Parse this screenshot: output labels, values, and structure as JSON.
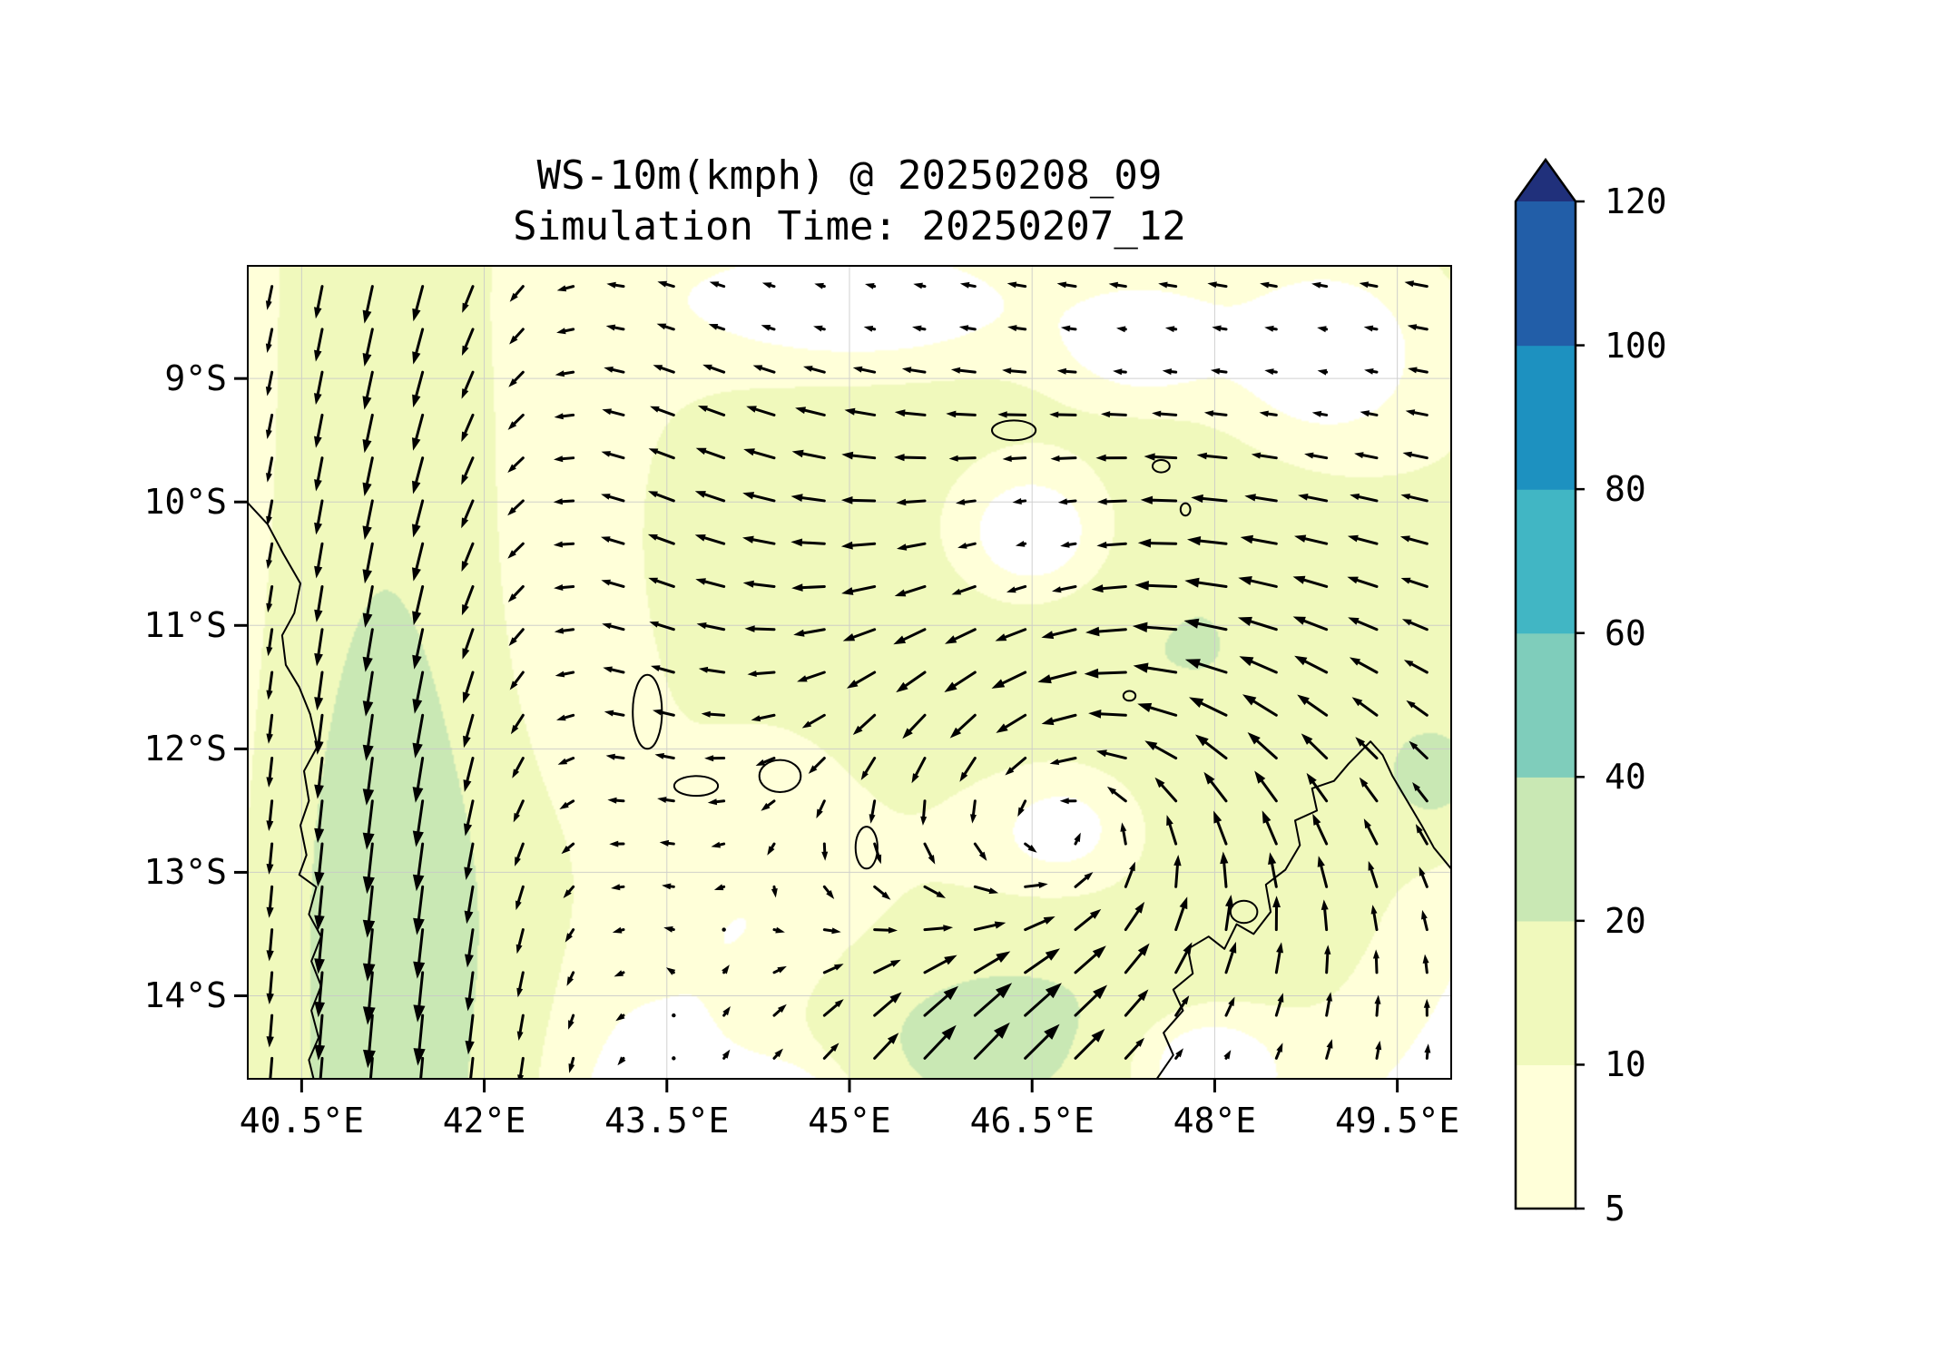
{
  "chart_data": {
    "type": "quiver",
    "title": "WS-10m(kmph) @ 20250208_09",
    "subtitle": "Simulation Time: 20250207_12",
    "x_axis": {
      "ticks": [
        "40.5°E",
        "42°E",
        "43.5°E",
        "45°E",
        "46.5°E",
        "48°E",
        "49.5°E"
      ],
      "tick_values": [
        40.5,
        42,
        43.5,
        45,
        46.5,
        48,
        49.5
      ],
      "range": [
        40.05,
        49.95
      ]
    },
    "y_axis": {
      "ticks": [
        "9°S",
        "10°S",
        "11°S",
        "12°S",
        "13°S",
        "14°S"
      ],
      "tick_values": [
        -9,
        -10,
        -11,
        -12,
        -13,
        -14
      ],
      "range": [
        -14.68,
        -8.08
      ]
    },
    "gridlines": true,
    "grid_color": "#c8c8c8",
    "arrow_color": "#000000",
    "colorbar": {
      "orientation": "vertical",
      "extend": "max",
      "levels": [
        5,
        10,
        20,
        40,
        60,
        80,
        100,
        120
      ],
      "tick_labels": [
        "5",
        "10",
        "20",
        "40",
        "60",
        "80",
        "100",
        "120"
      ],
      "colors": [
        "#ffffd9",
        "#f0f9bc",
        "#c9e8b4",
        "#7fcdbb",
        "#41b6c4",
        "#1d91c0",
        "#225ea8"
      ],
      "extend_color": "#20307b",
      "below_min_color": "#ffffff"
    },
    "quiver_grid": {
      "nx": 24,
      "ny": 19
    },
    "field_model": {
      "west_jet": {
        "lon0": 41.2,
        "sigma": 1.2,
        "u_base": -2.0,
        "v_base": -17,
        "v_south_extra": -9,
        "south_lat": -11.5,
        "south_width": 0.9
      },
      "trade_flow": {
        "u": -13,
        "v": 2.5,
        "lat0": -10.8,
        "lat_width": 0.9,
        "lon0": 43.5,
        "lon_width": 1.2
      },
      "mid_drift": {
        "u": -8,
        "v": 7,
        "lon0": 44.3,
        "sx": 2.0,
        "lat0": -11.4,
        "sy": 2.8
      },
      "vortex": {
        "lon0": 46.9,
        "lat0": -12.55,
        "omega": 15,
        "sigma": 1.5,
        "inflow": 0.5
      },
      "south_inflow": {
        "u": 5,
        "v": 16,
        "lon0": 45.8,
        "lat0": -14.4,
        "sx": 1.3,
        "sy": 0.9
      },
      "calm_zones": [
        [
          45.1,
          -8.4,
          1.7,
          0.6
        ],
        [
          47.4,
          -8.7,
          0.8,
          0.55
        ],
        [
          48.9,
          -8.8,
          1.0,
          0.9
        ],
        [
          46.5,
          -10.25,
          0.85,
          0.75
        ],
        [
          47.95,
          -14.55,
          0.7,
          0.5
        ],
        [
          44.4,
          -14.85,
          0.6,
          0.4
        ]
      ],
      "calm_strength": 0.94,
      "fill_bumps": [
        [
          41.22,
          -13.3,
          0.34,
          1.5,
          13
        ],
        [
          49.85,
          -12.2,
          0.5,
          0.55,
          15
        ],
        [
          43.2,
          -13.2,
          1.8,
          1.4,
          6
        ]
      ]
    },
    "map_features": {
      "coastlines": [
        [
          [
            40.05,
            -10.0
          ],
          [
            40.22,
            -10.18
          ],
          [
            40.35,
            -10.42
          ],
          [
            40.49,
            -10.66
          ],
          [
            40.44,
            -10.9
          ],
          [
            40.34,
            -11.08
          ],
          [
            40.37,
            -11.32
          ],
          [
            40.48,
            -11.5
          ],
          [
            40.57,
            -11.72
          ],
          [
            40.63,
            -11.98
          ],
          [
            40.52,
            -12.18
          ],
          [
            40.56,
            -12.42
          ],
          [
            40.49,
            -12.62
          ],
          [
            40.54,
            -12.86
          ],
          [
            40.48,
            -13.02
          ],
          [
            40.62,
            -13.12
          ],
          [
            40.56,
            -13.34
          ],
          [
            40.66,
            -13.52
          ],
          [
            40.58,
            -13.72
          ],
          [
            40.66,
            -13.92
          ],
          [
            40.58,
            -14.12
          ],
          [
            40.64,
            -14.34
          ],
          [
            40.56,
            -14.52
          ],
          [
            40.6,
            -14.68
          ]
        ],
        [
          [
            47.52,
            -14.68
          ],
          [
            47.66,
            -14.48
          ],
          [
            47.58,
            -14.3
          ],
          [
            47.74,
            -14.12
          ],
          [
            47.66,
            -13.95
          ],
          [
            47.82,
            -13.82
          ],
          [
            47.78,
            -13.62
          ],
          [
            47.95,
            -13.52
          ],
          [
            48.08,
            -13.62
          ],
          [
            48.18,
            -13.42
          ],
          [
            48.32,
            -13.5
          ],
          [
            48.46,
            -13.32
          ],
          [
            48.42,
            -13.1
          ],
          [
            48.58,
            -12.98
          ],
          [
            48.7,
            -12.78
          ],
          [
            48.66,
            -12.58
          ],
          [
            48.84,
            -12.5
          ],
          [
            48.8,
            -12.32
          ],
          [
            48.98,
            -12.26
          ],
          [
            49.1,
            -12.12
          ],
          [
            49.2,
            -12.02
          ],
          [
            49.28,
            -11.94
          ],
          [
            49.38,
            -12.05
          ],
          [
            49.46,
            -12.22
          ],
          [
            49.58,
            -12.42
          ],
          [
            49.7,
            -12.62
          ],
          [
            49.8,
            -12.8
          ],
          [
            49.95,
            -12.98
          ]
        ]
      ],
      "islands": [
        [
          43.34,
          -11.7,
          0.12,
          0.3
        ],
        [
          43.74,
          -12.3,
          0.18,
          0.08
        ],
        [
          44.43,
          -12.22,
          0.17,
          0.13
        ],
        [
          45.14,
          -12.8,
          0.09,
          0.17
        ],
        [
          46.35,
          -9.42,
          0.18,
          0.08
        ],
        [
          47.56,
          -9.71,
          0.07,
          0.05
        ],
        [
          47.76,
          -10.06,
          0.04,
          0.05
        ],
        [
          47.3,
          -11.57,
          0.05,
          0.04
        ],
        [
          48.24,
          -13.32,
          0.11,
          0.09
        ]
      ]
    }
  }
}
